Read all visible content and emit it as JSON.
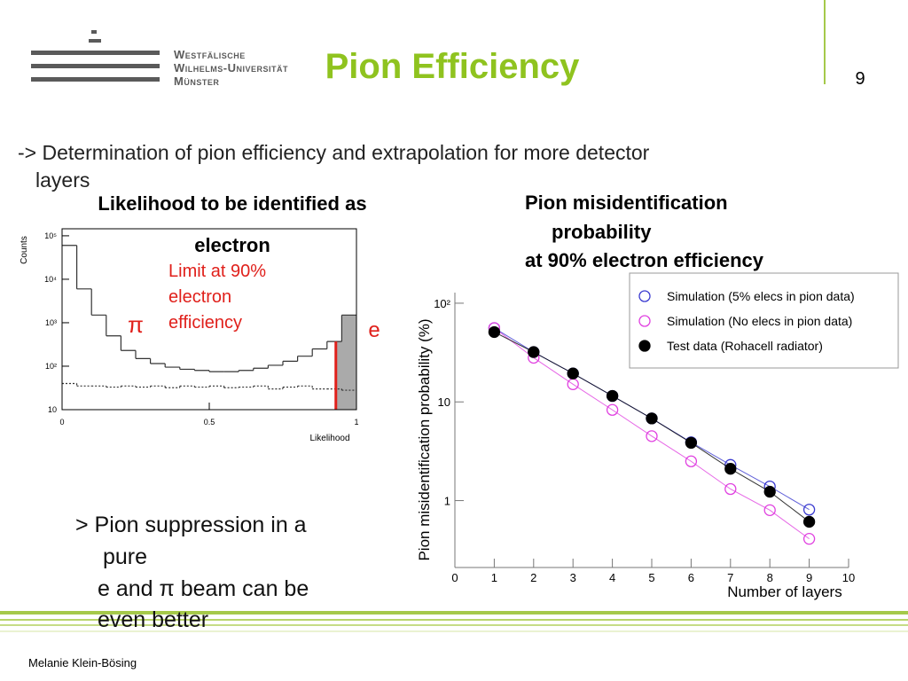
{
  "header": {
    "logo_lines": [
      "Westfälische",
      "Wilhelms-Universität",
      "Münster"
    ],
    "title": "Pion Efficiency",
    "page_number": "9"
  },
  "intro": [
    "-> Determination of pion efficiency and extrapolation for more detector",
    "layers"
  ],
  "note": [
    "> Pion suppression in a",
    "pure",
    "e and π beam can be",
    "even better"
  ],
  "footer": "Melanie Klein-Bösing",
  "chart_data": [
    {
      "type": "histogram",
      "title": [
        "Likelihood to be identified as",
        "electron"
      ],
      "x_label": "Likelihood",
      "y_label": "Counts",
      "bins": [
        0,
        0.05,
        0.1,
        0.15,
        0.2,
        0.25,
        0.3,
        0.35,
        0.4,
        0.45,
        0.5,
        0.55,
        0.6,
        0.65,
        0.7,
        0.75,
        0.8,
        0.85,
        0.9,
        0.95,
        1
      ],
      "series": [
        {
          "color": "#333333",
          "style": "solid",
          "values": [
            60000,
            6000,
            1500,
            500,
            230,
            150,
            115,
            95,
            85,
            80,
            75,
            75,
            80,
            90,
            105,
            130,
            170,
            250,
            370,
            1500
          ]
        },
        {
          "color": "#333333",
          "style": "dotted",
          "values": [
            40,
            35,
            35,
            33,
            35,
            33,
            35,
            32,
            35,
            33,
            35,
            32,
            33,
            35,
            30,
            33,
            35,
            30,
            30,
            28
          ]
        }
      ],
      "xlim": [
        0,
        1
      ],
      "ylim": [
        10,
        145000
      ],
      "log_y": true,
      "xticks": [
        0,
        0.5,
        1
      ],
      "yticks": [
        10,
        {
          "value": 100,
          "label": "10²"
        },
        {
          "value": 1000,
          "label": "10³"
        },
        {
          "value": 10000,
          "label": "10⁴"
        },
        {
          "value": 100000,
          "label": "10⁵"
        }
      ],
      "cut": 0.93,
      "cut_color": "#e0201b",
      "shade_color": "#aaaaaa",
      "annotations": {
        "pi": "π",
        "limit": [
          "Limit at 90%",
          "electron",
          "efficiency"
        ],
        "e": "e"
      }
    },
    {
      "type": "line",
      "title": [
        "Pion misidentification",
        "probability",
        "at 90% electron efficiency"
      ],
      "x_label": "Number of layers",
      "y_label": "Pion misidentification probability (%)",
      "x": [
        1,
        2,
        3,
        4,
        5,
        6,
        7,
        8,
        9
      ],
      "series": [
        {
          "name": "Simulation (5% elecs in pion data)",
          "color": "#3a3ad0",
          "marker": "open",
          "values": [
            56,
            32,
            19.4,
            11.5,
            6.8,
            3.9,
            2.3,
            1.39,
            0.81
          ]
        },
        {
          "name": "Simulation (No elecs in pion data)",
          "color": "#e040e0",
          "marker": "open",
          "values": [
            56,
            28,
            15.1,
            8.3,
            4.5,
            2.5,
            1.31,
            0.8,
            0.41
          ]
        },
        {
          "name": "Test data (Rohacell radiator)",
          "color": "#000000",
          "marker": "filled",
          "values": [
            51,
            32,
            19.4,
            11.5,
            6.8,
            3.85,
            2.1,
            1.23,
            0.61
          ]
        }
      ],
      "xlim": [
        0,
        10
      ],
      "ylim": [
        0.21,
        128
      ],
      "log_y": true,
      "xticks": [
        0,
        1,
        2,
        3,
        4,
        5,
        6,
        7,
        8,
        9,
        10
      ],
      "yticks": [
        1,
        10,
        {
          "value": 100,
          "label": "10²"
        }
      ],
      "legend": "top-right"
    }
  ]
}
